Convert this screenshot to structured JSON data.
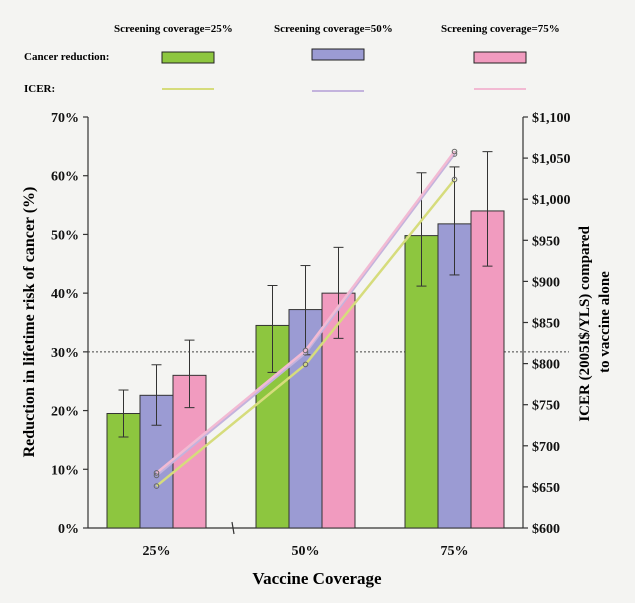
{
  "chart_data": {
    "type": "bar",
    "xlabel": "Vaccine Coverage",
    "ylabel_left": "Reduction in lifetime risk of cancer (%)",
    "ylabel_right": "ICER (2005I$/YLS) compared to vaccine alone",
    "categories": [
      "25%",
      "50%",
      "75%"
    ],
    "ylim_left": [
      0,
      70
    ],
    "yticks_left": [
      "0%",
      "10%",
      "20%",
      "30%",
      "40%",
      "50%",
      "60%",
      "70%"
    ],
    "ylim_right": [
      600,
      1100
    ],
    "yticks_right": [
      "$600",
      "$650",
      "$700",
      "$750",
      "$800",
      "$850",
      "$900",
      "$950",
      "$1,000",
      "$1,050",
      "$1,100"
    ],
    "reference_line": {
      "left_value": 30,
      "style": "dotted"
    },
    "legend": {
      "headers": [
        "Screening coverage=25%",
        "Screening coverage=50%",
        "Screening coverage=75%"
      ],
      "row_labels": [
        "Cancer reduction:",
        "ICER:"
      ]
    },
    "series": [
      {
        "color": "#8dc63f",
        "line_color": "#d6dc7c",
        "values": [
          19.5,
          34.5,
          49.8
        ],
        "err_low": [
          15.5,
          26.5,
          41.2
        ],
        "err_high": [
          23.5,
          41.3,
          60.5
        ],
        "icer": [
          651,
          799,
          1024
        ]
      },
      {
        "color": "#9b9bd3",
        "line_color": "#c3b3dd",
        "values": [
          22.6,
          37.2,
          51.8
        ],
        "err_low": [
          17.5,
          29.5,
          43.1
        ],
        "err_high": [
          27.8,
          44.7,
          61.5
        ],
        "icer": [
          664,
          813,
          1055
        ]
      },
      {
        "color": "#f19bbf",
        "line_color": "#f2bad3",
        "values": [
          26.0,
          40.0,
          54.0
        ],
        "err_low": [
          20.5,
          32.3,
          44.6
        ],
        "err_high": [
          32.0,
          47.8,
          64.1
        ],
        "icer": [
          667,
          816,
          1058
        ]
      }
    ]
  }
}
